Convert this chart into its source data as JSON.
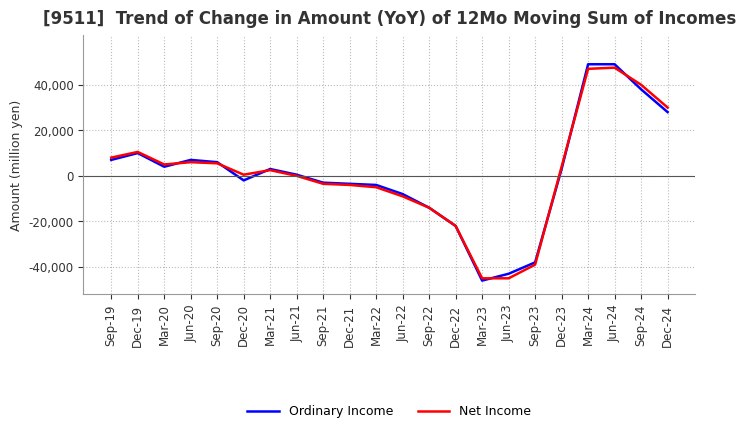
{
  "title": "[9511]  Trend of Change in Amount (YoY) of 12Mo Moving Sum of Incomes",
  "ylabel": "Amount (million yen)",
  "x_labels": [
    "Sep-19",
    "Dec-19",
    "Mar-20",
    "Jun-20",
    "Sep-20",
    "Dec-20",
    "Mar-21",
    "Jun-21",
    "Sep-21",
    "Dec-21",
    "Mar-22",
    "Jun-22",
    "Sep-22",
    "Dec-22",
    "Mar-23",
    "Jun-23",
    "Sep-23",
    "Dec-23",
    "Mar-24",
    "Jun-24",
    "Sep-24",
    "Dec-24"
  ],
  "ordinary_income": [
    7000,
    10000,
    4000,
    7000,
    6000,
    -2000,
    3000,
    500,
    -3000,
    -3500,
    -4000,
    -8000,
    -14000,
    -22000,
    -46000,
    -43000,
    -38000,
    3000,
    49000,
    49000,
    38000,
    28000
  ],
  "net_income": [
    8000,
    10500,
    5000,
    6000,
    5500,
    500,
    2500,
    0,
    -3500,
    -4000,
    -5000,
    -9000,
    -14000,
    -22000,
    -45000,
    -45000,
    -39000,
    4000,
    47000,
    47500,
    40000,
    30000
  ],
  "ordinary_color": "#0000ff",
  "net_color": "#ff0000",
  "ylim": [
    -52000,
    62000
  ],
  "yticks": [
    -40000,
    -20000,
    0,
    20000,
    40000
  ],
  "background_color": "#ffffff",
  "grid_color": "#bbbbbb",
  "title_fontsize": 12,
  "label_fontsize": 9,
  "tick_fontsize": 8.5
}
